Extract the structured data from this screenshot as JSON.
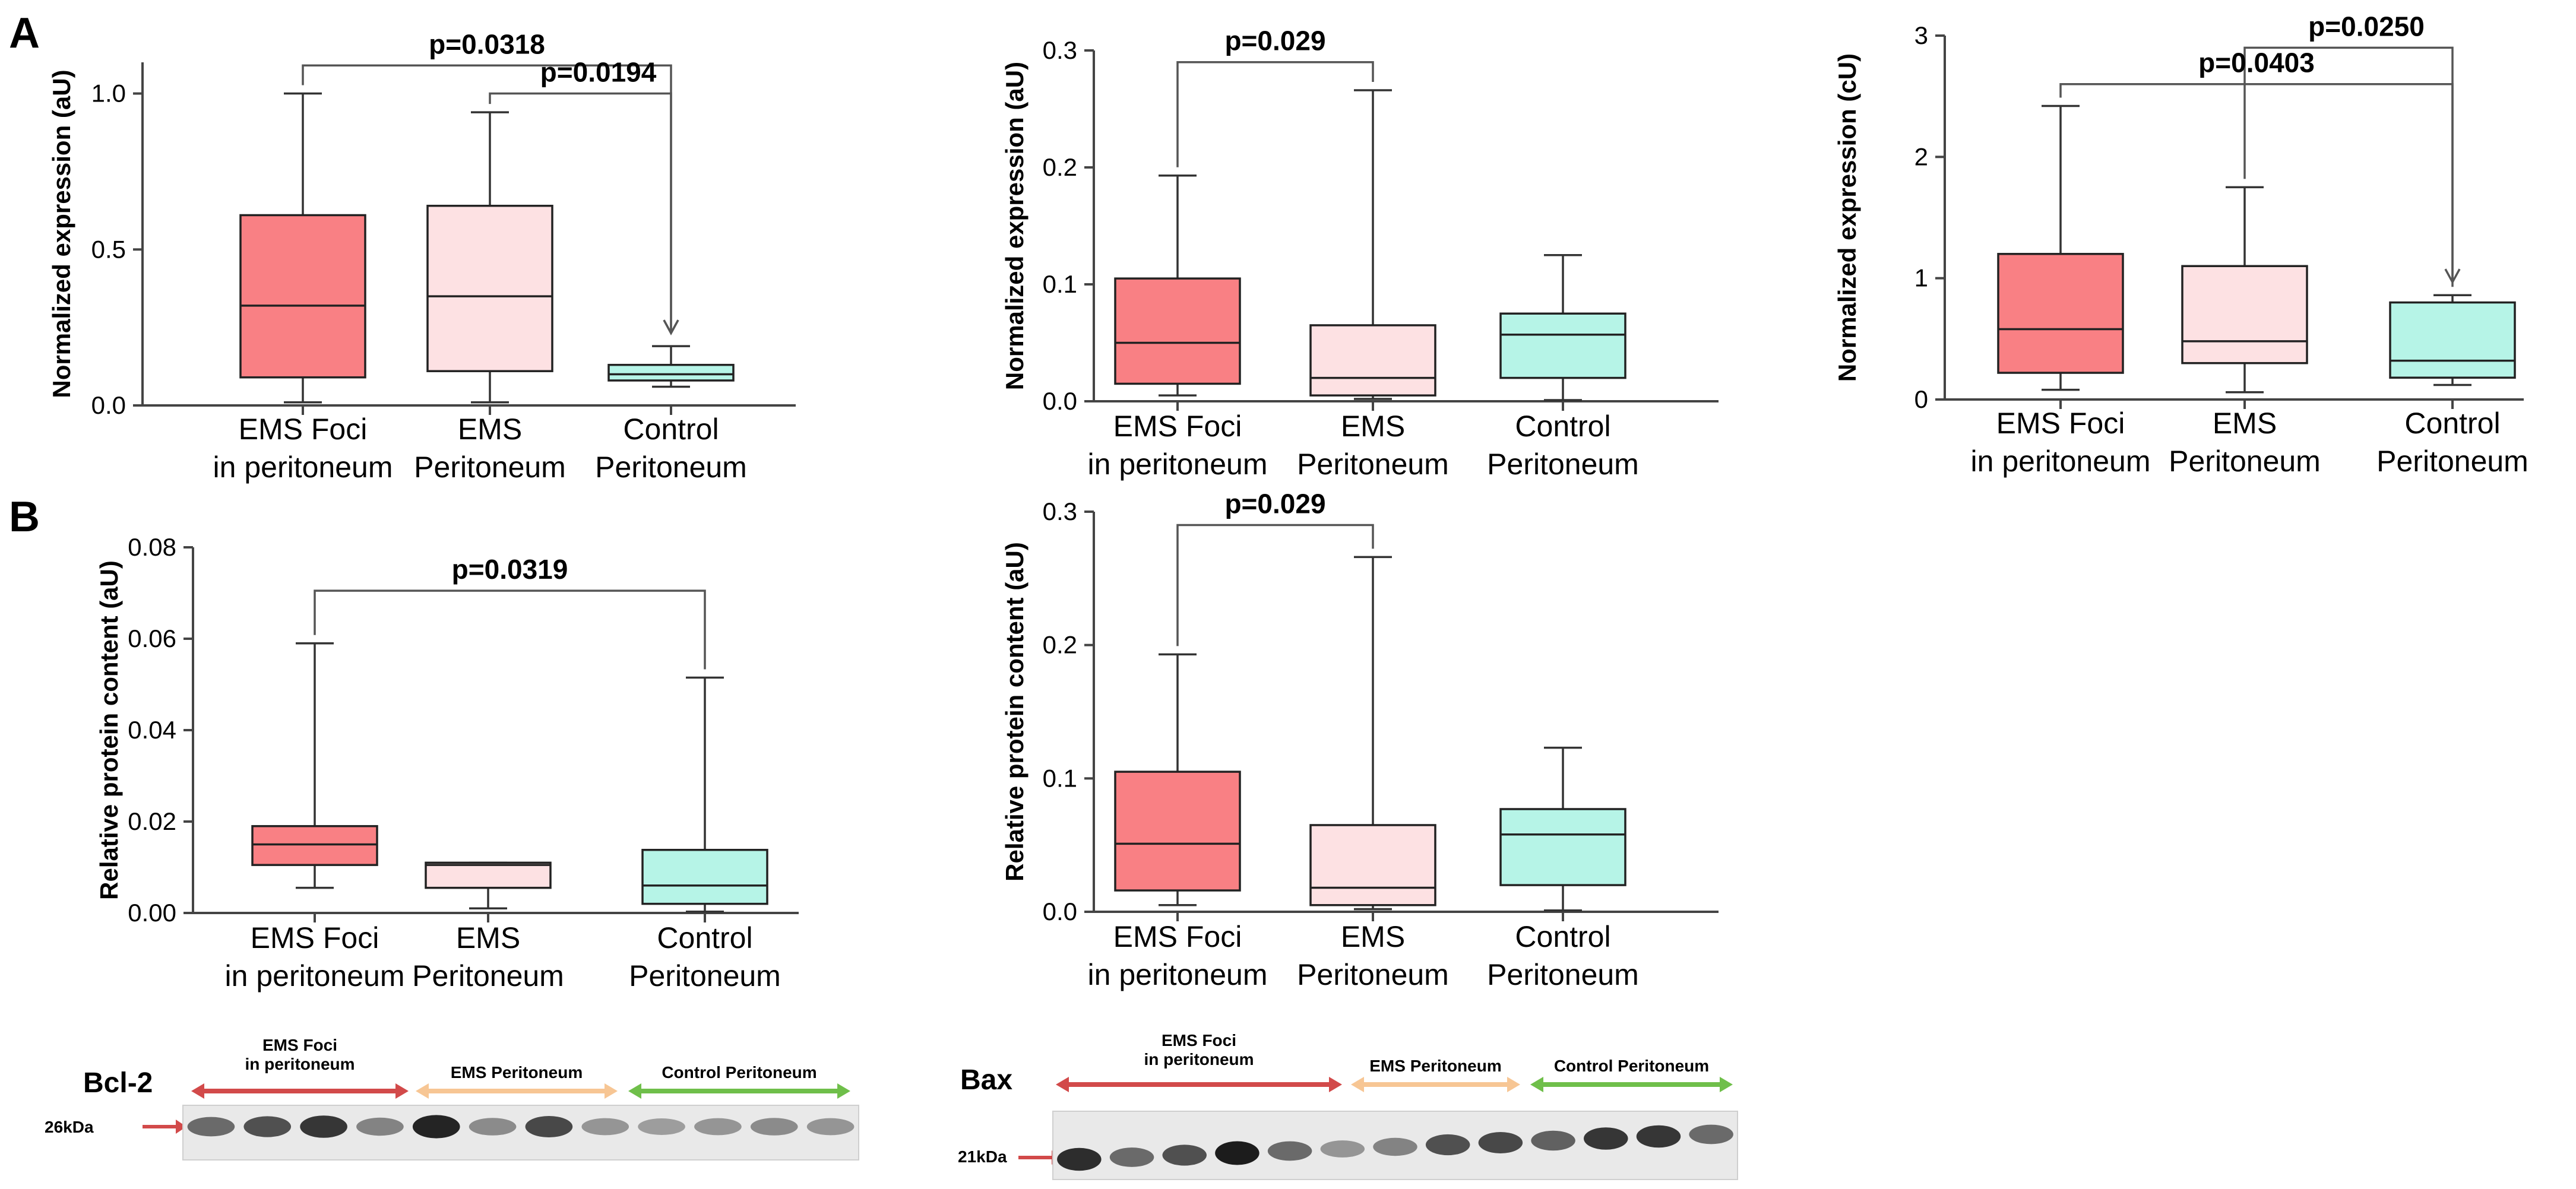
{
  "panel_labels": {
    "a": "A",
    "b": "B"
  },
  "colors": {
    "ems_foci": "#f98084",
    "ems_peritoneum": "#fde1e3",
    "control_peritoneum": "#b6f4e7",
    "red_arrow": "#d24a4a",
    "orange_arrow": "#f7c694",
    "green_arrow": "#6fbf4a"
  },
  "chart_data": [
    {
      "id": "A1",
      "type": "box",
      "ylabel": "Normalized expression (aU)",
      "ylim": [
        0,
        1.1
      ],
      "yticks": [
        "0.0",
        "0.5",
        "1.0"
      ],
      "categories": [
        {
          "line1": "EMS Foci",
          "line2": "in peritoneum"
        },
        {
          "line1": "EMS",
          "line2": "Peritoneum"
        },
        {
          "line1": "Control",
          "line2": "Peritoneum"
        }
      ],
      "boxes": [
        {
          "min": 0.01,
          "q1": 0.09,
          "median": 0.32,
          "q3": 0.61,
          "max": 1.0
        },
        {
          "min": 0.01,
          "q1": 0.11,
          "median": 0.35,
          "q3": 0.64,
          "max": 0.94
        },
        {
          "min": 0.06,
          "q1": 0.08,
          "median": 0.1,
          "q3": 0.13,
          "max": 0.19
        }
      ],
      "comparisons": [
        {
          "text": "p=0.0318",
          "from": 0,
          "to": 2,
          "level": 1.09,
          "arrow": true
        },
        {
          "text": "p=0.0194",
          "from": 1,
          "to": 2,
          "level": 1.0,
          "arrow": true
        }
      ]
    },
    {
      "id": "A2",
      "type": "box",
      "ylabel": "Normalized expression (aU)",
      "ylim": [
        0,
        0.3
      ],
      "yticks": [
        "0.0",
        "0.1",
        "0.2",
        "0.3"
      ],
      "categories": [
        {
          "line1": "EMS Foci",
          "line2": "in peritoneum"
        },
        {
          "line1": "EMS",
          "line2": "Peritoneum"
        },
        {
          "line1": "Control",
          "line2": "Peritoneum"
        }
      ],
      "boxes": [
        {
          "min": 0.005,
          "q1": 0.015,
          "median": 0.05,
          "q3": 0.105,
          "max": 0.193
        },
        {
          "min": 0.002,
          "q1": 0.005,
          "median": 0.02,
          "q3": 0.065,
          "max": 0.266
        },
        {
          "min": 0.001,
          "q1": 0.02,
          "median": 0.057,
          "q3": 0.075,
          "max": 0.125
        }
      ],
      "comparisons": [
        {
          "text": "p=0.029",
          "from": 0,
          "to": 1,
          "level": 0.29,
          "arrow": false
        }
      ]
    },
    {
      "id": "A3",
      "type": "box",
      "ylabel": "Normalized expression (cU)",
      "ylim": [
        0,
        3
      ],
      "yticks": [
        "0",
        "1",
        "2",
        "3"
      ],
      "categories": [
        {
          "line1": "EMS Foci",
          "line2": "in peritoneum"
        },
        {
          "line1": "EMS",
          "line2": "Peritoneum"
        },
        {
          "line1": "Control",
          "line2": "Peritoneum"
        }
      ],
      "boxes": [
        {
          "min": 0.08,
          "q1": 0.22,
          "median": 0.58,
          "q3": 1.2,
          "max": 2.42
        },
        {
          "min": 0.06,
          "q1": 0.3,
          "median": 0.48,
          "q3": 1.1,
          "max": 1.75
        },
        {
          "min": 0.12,
          "q1": 0.18,
          "median": 0.32,
          "q3": 0.8,
          "max": 0.86
        }
      ],
      "comparisons": [
        {
          "text": "p=0.0250",
          "from": 1,
          "to": 2,
          "level": 2.9,
          "arrow": true
        },
        {
          "text": "p=0.0403",
          "from": 0,
          "to": 2,
          "level": 2.6,
          "arrow": false
        }
      ]
    },
    {
      "id": "B1",
      "type": "box",
      "ylabel": "Relative protein content (aU)",
      "ylim": [
        0,
        0.08
      ],
      "yticks": [
        "0.00",
        "0.02",
        "0.04",
        "0.06",
        "0.08"
      ],
      "categories": [
        {
          "line1": "EMS Foci",
          "line2": "in peritoneum"
        },
        {
          "line1": "EMS",
          "line2": "Peritoneum"
        },
        {
          "line1": "Control",
          "line2": "Peritoneum"
        }
      ],
      "boxes": [
        {
          "min": 0.0055,
          "q1": 0.0105,
          "median": 0.015,
          "q3": 0.019,
          "max": 0.059
        },
        {
          "min": 0.001,
          "q1": 0.0055,
          "median": 0.0105,
          "q3": 0.011,
          "max": 0.011
        },
        {
          "min": 0.0003,
          "q1": 0.002,
          "median": 0.006,
          "q3": 0.0138,
          "max": 0.0515
        }
      ],
      "comparisons": [
        {
          "text": "p=0.0319",
          "from": 0,
          "to": 2,
          "level": 0.0705,
          "arrow": false
        }
      ]
    },
    {
      "id": "B2",
      "type": "box",
      "ylabel": "Relative protein content (aU)",
      "ylim": [
        0,
        0.3
      ],
      "yticks": [
        "0.0",
        "0.1",
        "0.2",
        "0.3"
      ],
      "categories": [
        {
          "line1": "EMS Foci",
          "line2": "in peritoneum"
        },
        {
          "line1": "EMS",
          "line2": "Peritoneum"
        },
        {
          "line1": "Control",
          "line2": "Peritoneum"
        }
      ],
      "boxes": [
        {
          "min": 0.005,
          "q1": 0.016,
          "median": 0.051,
          "q3": 0.105,
          "max": 0.193
        },
        {
          "min": 0.002,
          "q1": 0.005,
          "median": 0.018,
          "q3": 0.065,
          "max": 0.266
        },
        {
          "min": 0.001,
          "q1": 0.02,
          "median": 0.058,
          "q3": 0.077,
          "max": 0.123
        }
      ],
      "comparisons": [
        {
          "text": "p=0.029",
          "from": 0,
          "to": 1,
          "level": 0.29,
          "arrow": false
        }
      ]
    }
  ],
  "blots": [
    {
      "id": "bcl2",
      "title": "Bcl-2",
      "kda": "26kDa",
      "groups": [
        {
          "line1": "EMS Foci",
          "line2": "in peritoneum"
        },
        {
          "line1": "EMS Peritoneum",
          "line2": ""
        },
        {
          "line1": "Control Peritoneum",
          "line2": ""
        }
      ],
      "band_intensity": [
        0.55,
        0.7,
        0.85,
        0.4,
        0.95,
        0.35,
        0.75,
        0.3,
        0.25,
        0.3,
        0.35,
        0.3
      ]
    },
    {
      "id": "bax",
      "title": "Bax",
      "kda": "21kDa",
      "groups": [
        {
          "line1": "EMS Foci",
          "line2": "in peritoneum"
        },
        {
          "line1": "EMS Peritoneum",
          "line2": ""
        },
        {
          "line1": "Control Peritoneum",
          "line2": ""
        }
      ],
      "band_intensity": [
        0.9,
        0.55,
        0.7,
        1.0,
        0.55,
        0.3,
        0.4,
        0.7,
        0.75,
        0.6,
        0.85,
        0.85,
        0.55
      ]
    }
  ]
}
